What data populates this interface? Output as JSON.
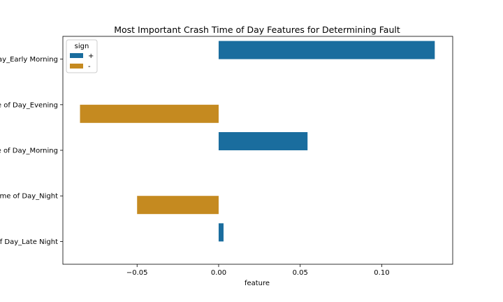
{
  "chart_data": {
    "type": "bar",
    "orientation": "horizontal",
    "title": "Most Important Crash Time of Day Features for Determining Fault",
    "xlabel": "feature",
    "ylabel": "",
    "xlim": [
      -0.0955,
      0.1435
    ],
    "xticks": [
      -0.05,
      0.0,
      0.05,
      0.1
    ],
    "xtick_labels": [
      "−0.05",
      "0.00",
      "0.05",
      "0.10"
    ],
    "categories": [
      "Time of Day_Early Morning",
      "Time of Day_Evening",
      "Time of Day_Morning",
      "Time of Day_Night",
      "Time of Day_Late Night"
    ],
    "category_labels_visible": [
      "ay_Early Morning",
      "e of Day_Evening",
      "e of Day_Morning",
      "me of Day_Night",
      "f Day_Late Night"
    ],
    "series": [
      {
        "name": "+",
        "color": "#1a6d9e",
        "values": [
          0.1325,
          null,
          0.0545,
          null,
          0.003
        ]
      },
      {
        "name": "-",
        "color": "#c58a20",
        "values": [
          null,
          -0.085,
          null,
          -0.05,
          null
        ]
      }
    ],
    "legend": {
      "title": "sign",
      "placement": "top-left"
    },
    "grid": false
  }
}
